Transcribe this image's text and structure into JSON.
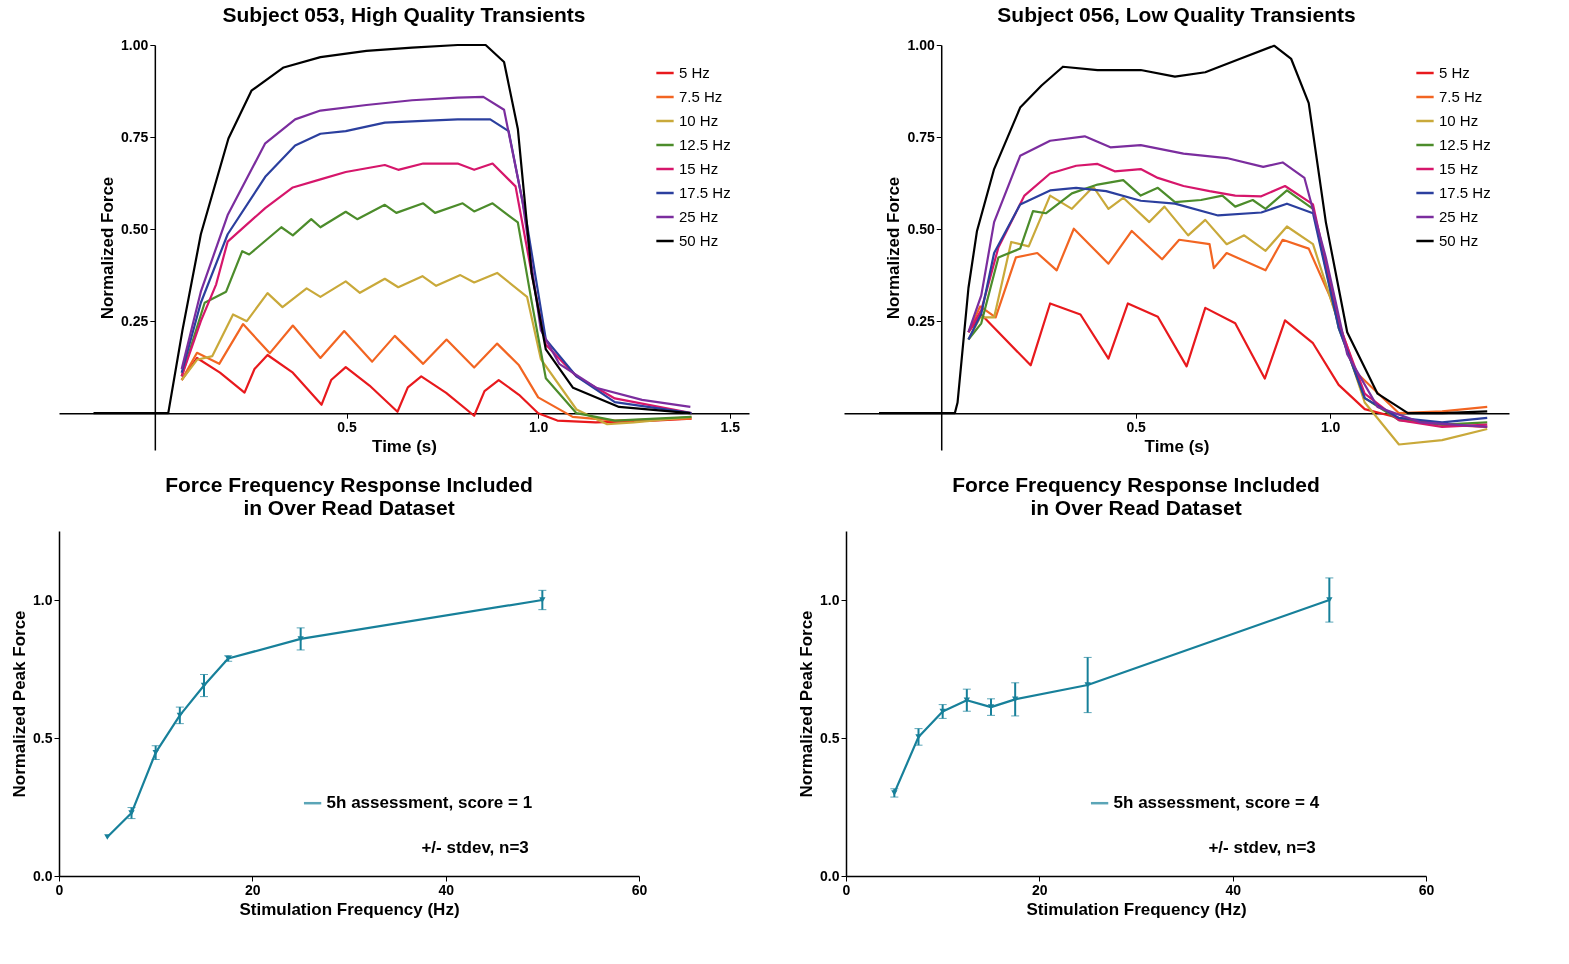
{
  "chart_data": [
    {
      "type": "line",
      "title": "Subject 053, High Quality Transients",
      "xlabel": "Time (s)",
      "ylabel": "Normalized Force",
      "xlim": [
        -0.25,
        1.55
      ],
      "ylim": [
        -0.1,
        1.0
      ],
      "xticks": [
        0.5,
        {
          "value": 1,
          "label": "1.0"
        },
        1.5
      ],
      "yticks": [
        0.25,
        {
          "value": 0.5,
          "label": "0.50"
        },
        0.75,
        {
          "value": 1,
          "label": "1.00"
        }
      ],
      "legend": "top right",
      "series": [
        {
          "name": "5 Hz",
          "color": "#e8191d",
          "x": [
            0.07,
            0.11,
            0.17,
            0.234,
            0.26,
            0.294,
            0.36,
            0.435,
            0.46,
            0.498,
            0.56,
            0.633,
            0.66,
            0.695,
            0.76,
            0.833,
            0.86,
            0.897,
            0.95,
            1.0,
            1.05,
            1.15,
            1.3,
            1.4
          ],
          "values": [
            0.09,
            0.15,
            0.11,
            0.056,
            0.12,
            0.158,
            0.11,
            0.023,
            0.09,
            0.125,
            0.075,
            0.004,
            0.07,
            0.1,
            0.055,
            -0.007,
            0.06,
            0.09,
            0.05,
            0.0,
            -0.02,
            -0.025,
            -0.02,
            -0.015
          ]
        },
        {
          "name": "7.5 Hz",
          "color": "#f26522",
          "x": [
            0.07,
            0.11,
            0.168,
            0.23,
            0.3,
            0.36,
            0.432,
            0.494,
            0.567,
            0.626,
            0.7,
            0.761,
            0.833,
            0.893,
            0.95,
            1.0,
            1.09,
            1.2,
            1.4
          ],
          "values": [
            0.09,
            0.164,
            0.134,
            0.242,
            0.163,
            0.238,
            0.15,
            0.223,
            0.14,
            0.21,
            0.134,
            0.2,
            0.124,
            0.189,
            0.13,
            0.043,
            -0.01,
            -0.02,
            -0.015
          ]
        },
        {
          "name": "10 Hz",
          "color": "#c9a93a",
          "x": [
            0.07,
            0.11,
            0.15,
            0.204,
            0.24,
            0.294,
            0.333,
            0.396,
            0.432,
            0.498,
            0.535,
            0.6,
            0.635,
            0.698,
            0.734,
            0.797,
            0.833,
            0.893,
            0.971,
            1.007,
            1.1,
            1.18,
            1.25,
            1.4
          ],
          "values": [
            0.09,
            0.145,
            0.155,
            0.268,
            0.25,
            0.326,
            0.288,
            0.339,
            0.316,
            0.358,
            0.327,
            0.365,
            0.342,
            0.372,
            0.346,
            0.375,
            0.355,
            0.381,
            0.316,
            0.147,
            0.01,
            -0.03,
            -0.025,
            -0.01
          ]
        },
        {
          "name": "12.5 Hz",
          "color": "#4c8c2b",
          "x": [
            0.07,
            0.1,
            0.13,
            0.186,
            0.228,
            0.246,
            0.33,
            0.36,
            0.408,
            0.432,
            0.498,
            0.528,
            0.6,
            0.63,
            0.7,
            0.731,
            0.803,
            0.833,
            0.881,
            0.947,
            0.983,
            1.02,
            1.1,
            1.2,
            1.4
          ],
          "values": [
            0.1,
            0.2,
            0.3,
            0.33,
            0.44,
            0.431,
            0.505,
            0.483,
            0.527,
            0.505,
            0.547,
            0.527,
            0.566,
            0.544,
            0.57,
            0.544,
            0.57,
            0.548,
            0.57,
            0.518,
            0.303,
            0.095,
            0.0,
            -0.02,
            -0.01
          ]
        },
        {
          "name": "15 Hz",
          "color": "#d6166b",
          "x": [
            0.07,
            0.12,
            0.16,
            0.19,
            0.288,
            0.36,
            0.432,
            0.498,
            0.6,
            0.635,
            0.7,
            0.79,
            0.833,
            0.881,
            0.941,
            0.983,
            1.02,
            1.1,
            1.2,
            1.4
          ],
          "values": [
            0.1,
            0.25,
            0.35,
            0.466,
            0.557,
            0.613,
            0.635,
            0.655,
            0.674,
            0.661,
            0.678,
            0.678,
            0.661,
            0.678,
            0.616,
            0.38,
            0.186,
            0.1,
            0.04,
            0.0
          ]
        },
        {
          "name": "17.5 Hz",
          "color": "#2b3f9e",
          "x": [
            0.07,
            0.12,
            0.19,
            0.288,
            0.366,
            0.432,
            0.498,
            0.6,
            0.7,
            0.79,
            0.875,
            0.923,
            0.971,
            1.02,
            1.1,
            1.2,
            1.4
          ],
          "values": [
            0.11,
            0.3,
            0.486,
            0.642,
            0.727,
            0.759,
            0.766,
            0.789,
            0.794,
            0.798,
            0.798,
            0.766,
            0.512,
            0.2,
            0.1,
            0.03,
            0.0
          ]
        },
        {
          "name": "25 Hz",
          "color": "#7b2d9e",
          "x": [
            0.07,
            0.12,
            0.19,
            0.288,
            0.366,
            0.432,
            0.552,
            0.671,
            0.79,
            0.857,
            0.911,
            0.959,
            1.007,
            1.055,
            1.151,
            1.271,
            1.397
          ],
          "values": [
            0.12,
            0.33,
            0.538,
            0.733,
            0.798,
            0.822,
            0.837,
            0.85,
            0.857,
            0.859,
            0.824,
            0.577,
            0.225,
            0.134,
            0.069,
            0.036,
            0.017
          ]
        },
        {
          "name": "50 Hz",
          "color": "#000000",
          "x": [
            -0.16,
            0.035,
            0.072,
            0.12,
            0.192,
            0.252,
            0.336,
            0.432,
            0.552,
            0.671,
            0.79,
            0.863,
            0.911,
            0.947,
            0.983,
            1.02,
            1.091,
            1.211,
            1.397
          ],
          "values": [
            0,
            0,
            0.225,
            0.486,
            0.746,
            0.876,
            0.939,
            0.967,
            0.984,
            0.993,
            1.0,
            1.0,
            0.954,
            0.772,
            0.38,
            0.173,
            0.069,
            0.017,
            0
          ]
        }
      ]
    },
    {
      "type": "line",
      "title": "Subject 056, Low Quality Transients",
      "xlabel": "Time (s)",
      "ylabel": "Normalized Force",
      "xlim": [
        -0.25,
        1.46
      ],
      "ylim": [
        -0.1,
        1.0
      ],
      "xticks": [
        0.5,
        {
          "value": 1,
          "label": "1.0"
        }
      ],
      "yticks": [
        0.25,
        {
          "value": 0.5,
          "label": "0.50"
        },
        0.75,
        {
          "value": 1,
          "label": "1.00"
        }
      ],
      "legend": "top right",
      "series": [
        {
          "name": "5 Hz",
          "color": "#e8191d",
          "x": [
            0.07,
            0.103,
            0.136,
            0.23,
            0.28,
            0.358,
            0.43,
            0.48,
            0.557,
            0.631,
            0.679,
            0.756,
            0.832,
            0.884,
            0.956,
            1.022,
            1.089,
            1.177,
            1.288,
            1.404
          ],
          "values": [
            0.22,
            0.268,
            0.232,
            0.13,
            0.298,
            0.268,
            0.148,
            0.298,
            0.262,
            0.127,
            0.286,
            0.244,
            0.094,
            0.252,
            0.19,
            0.077,
            0.011,
            -0.013,
            -0.031,
            -0.037
          ]
        },
        {
          "name": "7.5 Hz",
          "color": "#f26522",
          "x": [
            0.07,
            0.1,
            0.14,
            0.192,
            0.247,
            0.297,
            0.341,
            0.43,
            0.49,
            0.568,
            0.612,
            0.69,
            0.701,
            0.734,
            0.834,
            0.878,
            0.945,
            1.0,
            1.066,
            1.177,
            1.288,
            1.404
          ],
          "values": [
            0.22,
            0.29,
            0.26,
            0.423,
            0.435,
            0.388,
            0.501,
            0.406,
            0.495,
            0.418,
            0.471,
            0.459,
            0.394,
            0.435,
            0.388,
            0.471,
            0.447,
            0.316,
            0.112,
            0.0,
            0.005,
            0.017
          ]
        },
        {
          "name": "10 Hz",
          "color": "#c9a93a",
          "x": [
            0.07,
            0.1,
            0.136,
            0.18,
            0.225,
            0.28,
            0.336,
            0.391,
            0.43,
            0.468,
            0.535,
            0.574,
            0.635,
            0.679,
            0.734,
            0.779,
            0.834,
            0.889,
            0.956,
            1.022,
            1.089,
            1.177,
            1.288,
            1.404
          ],
          "values": [
            0.2,
            0.26,
            0.26,
            0.465,
            0.453,
            0.591,
            0.555,
            0.615,
            0.555,
            0.585,
            0.519,
            0.561,
            0.483,
            0.525,
            0.459,
            0.483,
            0.441,
            0.507,
            0.459,
            0.244,
            0.029,
            -0.085,
            -0.073,
            -0.043
          ]
        },
        {
          "name": "12.5 Hz",
          "color": "#4c8c2b",
          "x": [
            0.07,
            0.103,
            0.147,
            0.203,
            0.236,
            0.269,
            0.336,
            0.402,
            0.468,
            0.513,
            0.557,
            0.601,
            0.668,
            0.723,
            0.756,
            0.801,
            0.834,
            0.889,
            0.956,
            1.022,
            1.089,
            1.177,
            1.288,
            1.404
          ],
          "values": [
            0.2,
            0.244,
            0.423,
            0.447,
            0.549,
            0.543,
            0.597,
            0.621,
            0.633,
            0.591,
            0.612,
            0.573,
            0.579,
            0.591,
            0.561,
            0.579,
            0.555,
            0.605,
            0.555,
            0.232,
            0.041,
            -0.019,
            -0.031,
            -0.025
          ]
        },
        {
          "name": "15 Hz",
          "color": "#d6166b",
          "x": [
            0.07,
            0.103,
            0.147,
            0.214,
            0.28,
            0.347,
            0.402,
            0.446,
            0.513,
            0.557,
            0.623,
            0.69,
            0.756,
            0.823,
            0.884,
            0.956,
            1.022,
            1.089,
            1.177,
            1.288,
            1.404
          ],
          "values": [
            0.22,
            0.28,
            0.45,
            0.591,
            0.651,
            0.672,
            0.677,
            0.657,
            0.663,
            0.639,
            0.617,
            0.603,
            0.591,
            0.589,
            0.617,
            0.567,
            0.244,
            0.053,
            -0.019,
            -0.037,
            -0.031
          ]
        },
        {
          "name": "17.5 Hz",
          "color": "#2b3f9e",
          "x": [
            0.07,
            0.103,
            0.136,
            0.203,
            0.28,
            0.347,
            0.424,
            0.513,
            0.601,
            0.712,
            0.823,
            0.889,
            0.956,
            1.022,
            1.089,
            1.177,
            1.288,
            1.404
          ],
          "values": [
            0.2,
            0.27,
            0.435,
            0.567,
            0.605,
            0.612,
            0.603,
            0.577,
            0.569,
            0.537,
            0.545,
            0.569,
            0.543,
            0.232,
            0.041,
            -0.013,
            -0.025,
            -0.013
          ]
        },
        {
          "name": "25 Hz",
          "color": "#7b2d9e",
          "x": [
            0.07,
            0.103,
            0.136,
            0.203,
            0.28,
            0.369,
            0.435,
            0.513,
            0.623,
            0.734,
            0.828,
            0.878,
            0.934,
            0.989,
            1.044,
            1.122,
            1.233,
            1.404
          ],
          "values": [
            0.22,
            0.32,
            0.519,
            0.699,
            0.74,
            0.752,
            0.722,
            0.728,
            0.705,
            0.693,
            0.669,
            0.681,
            0.639,
            0.423,
            0.16,
            0.017,
            -0.025,
            -0.037
          ]
        },
        {
          "name": "50 Hz",
          "color": "#000000",
          "x": [
            -0.16,
            0.035,
            0.042,
            0.07,
            0.092,
            0.136,
            0.203,
            0.258,
            0.313,
            0.402,
            0.513,
            0.601,
            0.679,
            0.767,
            0.856,
            0.9,
            0.945,
            0.989,
            1.044,
            1.122,
            1.2,
            1.288,
            1.404
          ],
          "values": [
            0,
            0,
            0.029,
            0.34,
            0.495,
            0.663,
            0.83,
            0.89,
            0.941,
            0.932,
            0.932,
            0.914,
            0.926,
            0.962,
            0.998,
            0.962,
            0.842,
            0.519,
            0.22,
            0.053,
            0.0,
            0.0,
            0.005
          ]
        }
      ]
    },
    {
      "type": "line",
      "title": "Force Frequency Response Included in Over Read Dataset",
      "xlabel": "Stimulation Frequency (Hz)",
      "ylabel": "Normalized Peak Force",
      "x": [
        5,
        7.5,
        10,
        12.5,
        15,
        17.5,
        25,
        50
      ],
      "xlim": [
        0,
        60
      ],
      "ylim": [
        0,
        1.25
      ],
      "xticks": [
        0,
        20,
        40,
        60
      ],
      "yticks": [
        {
          "value": 0,
          "label": "0.0"
        },
        0.5,
        {
          "value": 1,
          "label": "1.0"
        }
      ],
      "legend": "bottom right",
      "marker": "triangle",
      "annotations": [
        "+/- stdev, n=3"
      ],
      "series": [
        {
          "name": "5h assessment, score = 1",
          "color": "#17809a",
          "values": [
            0.141,
            0.228,
            0.447,
            0.582,
            0.69,
            0.788,
            0.859,
            1.0
          ],
          "errors": [
            null,
            0.02,
            0.025,
            0.03,
            0.04,
            0.01,
            0.04,
            0.035
          ]
        }
      ]
    },
    {
      "type": "line",
      "title": "Force Frequency Response Included in Over Read Dataset",
      "xlabel": "Stimulation Frequency (Hz)",
      "ylabel": "Normalized Peak Force",
      "x": [
        5,
        7.5,
        10,
        12.5,
        15,
        17.5,
        25,
        50
      ],
      "xlim": [
        0,
        60
      ],
      "ylim": [
        0,
        1.25
      ],
      "xticks": [
        0,
        20,
        40,
        60
      ],
      "yticks": [
        {
          "value": 0,
          "label": "0.0"
        },
        0.5,
        {
          "value": 1,
          "label": "1.0"
        }
      ],
      "legend": "bottom right",
      "marker": "triangle",
      "annotations": [
        "+/- stdev, n=3"
      ],
      "series": [
        {
          "name": "5h assessment, score = 4",
          "color": "#17809a",
          "values": [
            0.301,
            0.504,
            0.596,
            0.637,
            0.612,
            0.64,
            0.692,
            1.0
          ],
          "errors": [
            0.015,
            0.03,
            0.025,
            0.04,
            0.03,
            0.06,
            0.1,
            0.08
          ]
        }
      ]
    }
  ]
}
